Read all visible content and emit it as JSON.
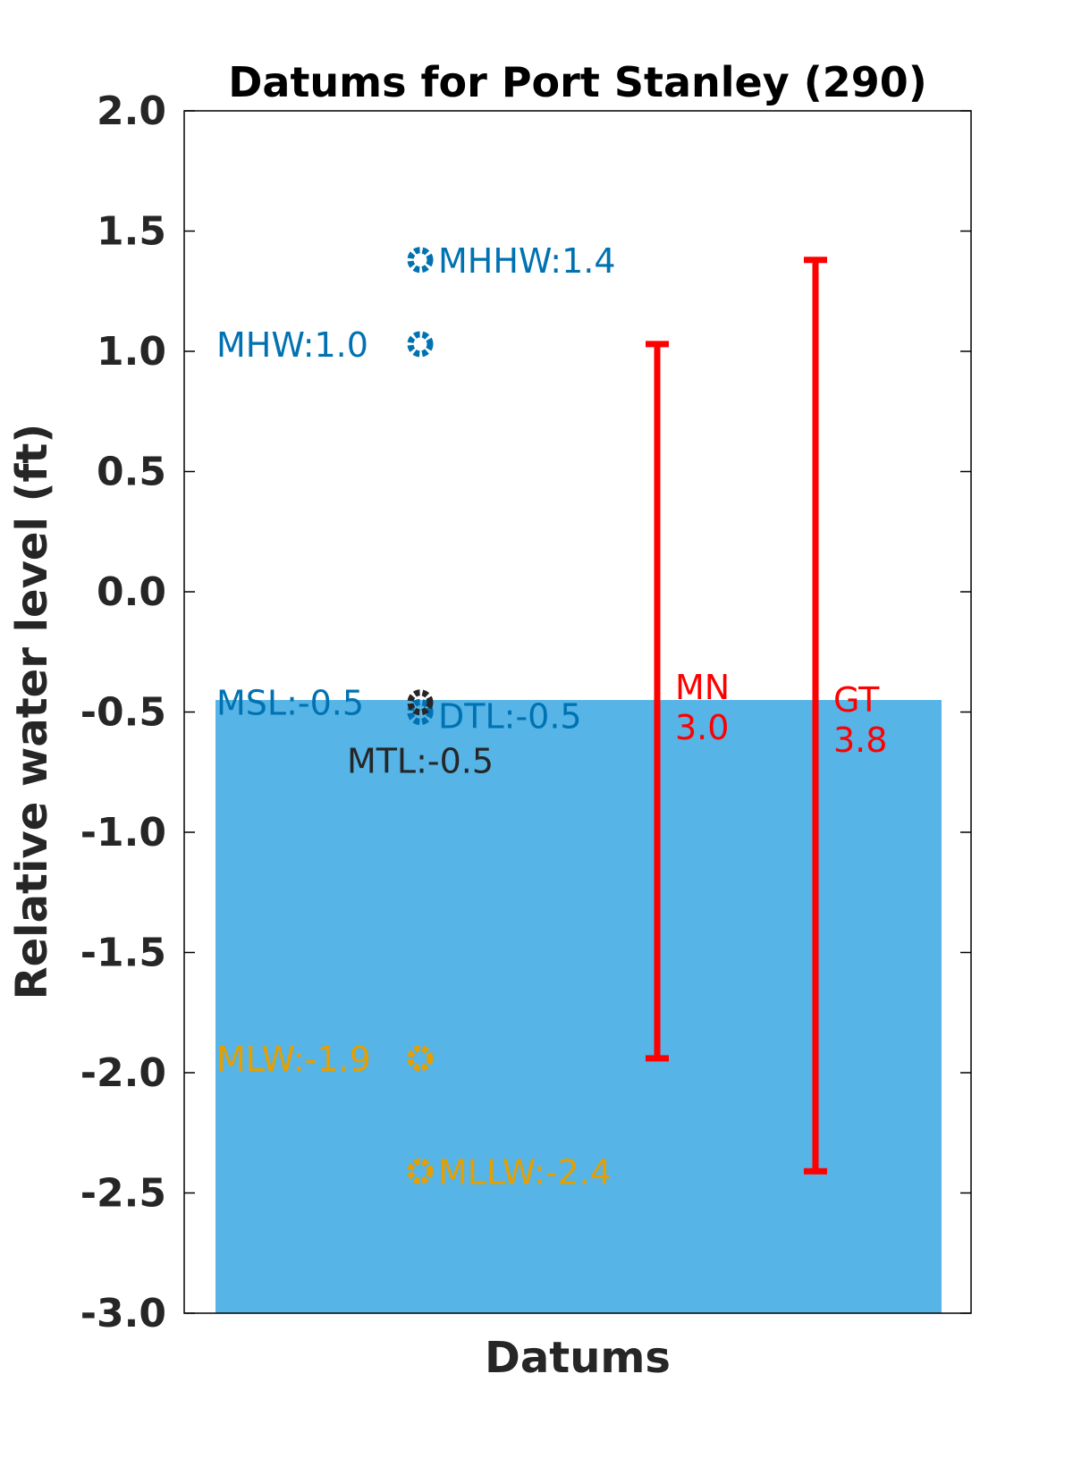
{
  "chart_data": {
    "type": "scatter",
    "title": "Datums for Port Stanley (290)",
    "xlabel": "Datums",
    "ylabel": "Relative water level (ft)",
    "ylim": [
      -3.0,
      2.0
    ],
    "yticks": [
      "2.0",
      "1.5",
      "1.0",
      "0.5",
      "0.0",
      "-0.5",
      "-1.0",
      "-1.5",
      "-2.0",
      "-2.5",
      "-3.0"
    ],
    "yticks_values": [
      2.0,
      1.5,
      1.0,
      0.5,
      0.0,
      -0.5,
      -1.0,
      -1.5,
      -2.0,
      -2.5,
      -3.0
    ],
    "grid": false,
    "water_fill": {
      "top": -0.45,
      "bottom": -3.0,
      "color": "#56B4E6"
    },
    "datums": [
      {
        "label": "MHHW:1.4",
        "value": 1.38,
        "color": "#0072B2",
        "label_side": "right"
      },
      {
        "label": "MHW:1.0",
        "value": 1.03,
        "color": "#0072B2",
        "label_side": "left"
      },
      {
        "label": "MSL:-0.5",
        "value": -0.5,
        "color": "#0072B2",
        "label_side": "left"
      },
      {
        "label": "DTL:-0.5",
        "value": -0.5,
        "color": "#0072B2",
        "label_side": "right"
      },
      {
        "label": "MTL:-0.5",
        "value": -0.46,
        "color": "#262626",
        "label_side": "below"
      },
      {
        "label": "MLW:-1.9",
        "value": -1.94,
        "color": "#E69F00",
        "label_side": "left"
      },
      {
        "label": "MLLW:-2.4",
        "value": -2.41,
        "color": "#E69F00",
        "label_side": "right"
      }
    ],
    "ranges": [
      {
        "name": "MN",
        "value_text": "3.0",
        "low": -1.94,
        "high": 1.03,
        "color": "#FF0000"
      },
      {
        "name": "GT",
        "value_text": "3.8",
        "low": -2.41,
        "high": 1.38,
        "color": "#FF0000"
      }
    ]
  }
}
